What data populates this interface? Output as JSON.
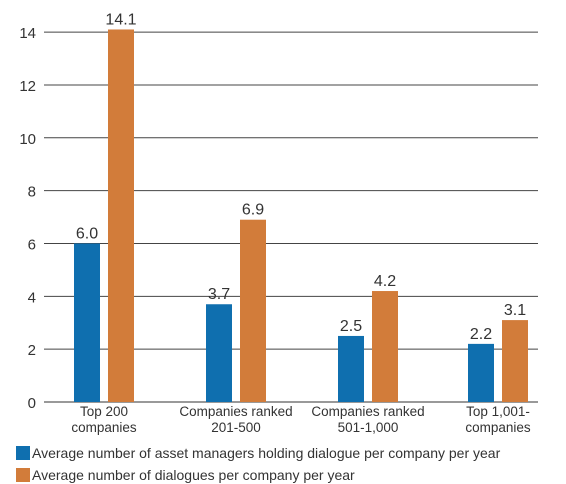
{
  "chart_data": {
    "type": "bar",
    "categories": [
      [
        "Top 200",
        "companies"
      ],
      [
        "Companies ranked",
        "201-500"
      ],
      [
        "Companies ranked",
        "501-1,000"
      ],
      [
        "Top 1,001-",
        "companies"
      ]
    ],
    "series": [
      {
        "name": "Average number of asset managers holding dialogue per company per year",
        "values": [
          6.0,
          3.7,
          2.5,
          2.2
        ],
        "labels": [
          "6.0",
          "3.7",
          "2.5",
          "2.2"
        ],
        "color": "#0f6faf"
      },
      {
        "name": "Average number of dialogues per company per year",
        "values": [
          14.1,
          6.9,
          4.2,
          3.1
        ],
        "labels": [
          "14.1",
          "6.9",
          "4.2",
          "3.1"
        ],
        "color": "#d27c3a"
      }
    ],
    "yticks": [
      "0",
      "2",
      "4",
      "6",
      "8",
      "10",
      "12",
      "14"
    ],
    "ylim": [
      0,
      14.8
    ],
    "grid": true,
    "legend_position": "bottom"
  }
}
